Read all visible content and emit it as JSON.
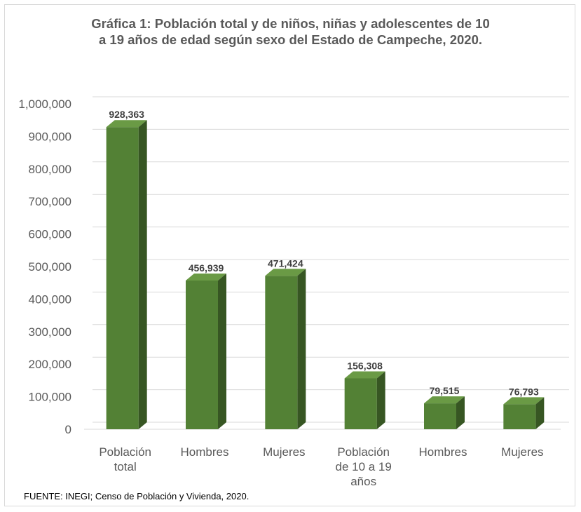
{
  "title_line1": "Gráfica 1: Población total y de niños, niñas y adolescentes de 10",
  "title_line2": "a 19 años de edad según sexo del Estado de Campeche, 2020.",
  "source": "FUENTE: INEGI; Censo de Población y Vivienda, 2020.",
  "colors": {
    "bar_front": "#538135",
    "bar_side": "#375623",
    "bar_top": "#6a9a45",
    "grid": "#d9d9d9",
    "text": "#595959"
  },
  "chart_data": {
    "type": "bar",
    "title": "Gráfica 1: Población total y de niños, niñas y adolescentes de 10 a 19 años de edad según sexo del Estado de Campeche, 2020.",
    "categories": [
      [
        "Población",
        "total"
      ],
      [
        "Hombres"
      ],
      [
        "Mujeres"
      ],
      [
        "Población",
        "de 10 a 19",
        "años"
      ],
      [
        "Hombres"
      ],
      [
        "Mujeres"
      ]
    ],
    "values": [
      928363,
      456939,
      471424,
      156308,
      79515,
      76793
    ],
    "data_labels": [
      "928,363",
      "456,939",
      "471,424",
      "156,308",
      "79,515",
      "76,793"
    ],
    "yticks": [
      "0",
      "100,000",
      "200,000",
      "300,000",
      "400,000",
      "500,000",
      "600,000",
      "700,000",
      "800,000",
      "900,000",
      "1,000,000"
    ],
    "ylim": [
      0,
      1000000
    ],
    "grid": true,
    "legend": "none"
  }
}
